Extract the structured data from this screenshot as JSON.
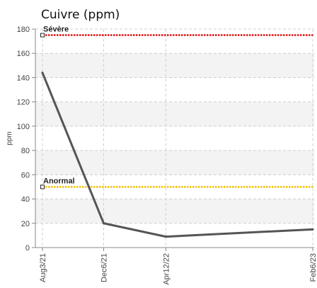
{
  "chart_data": {
    "type": "line",
    "title": "Cuivre (ppm)",
    "ylabel": "ppm",
    "xlabel": "",
    "ylim": [
      0,
      180
    ],
    "yticks": [
      0,
      20,
      40,
      60,
      80,
      100,
      120,
      140,
      160,
      180
    ],
    "categories": [
      "Aug3/21",
      "Dec6/21",
      "Apr12/22",
      "Feb6/23"
    ],
    "x": [
      "2021-08-03",
      "2021-12-06",
      "2022-04-12",
      "2023-02-06"
    ],
    "series": [
      {
        "values": [
          144,
          20,
          9,
          15
        ],
        "color": "#555555"
      }
    ],
    "reference_lines": [
      {
        "label": "Sévère",
        "value": 175,
        "color": "#e01010"
      },
      {
        "label": "Anormal",
        "value": 50,
        "color": "#f0c000"
      }
    ],
    "grid": true
  }
}
